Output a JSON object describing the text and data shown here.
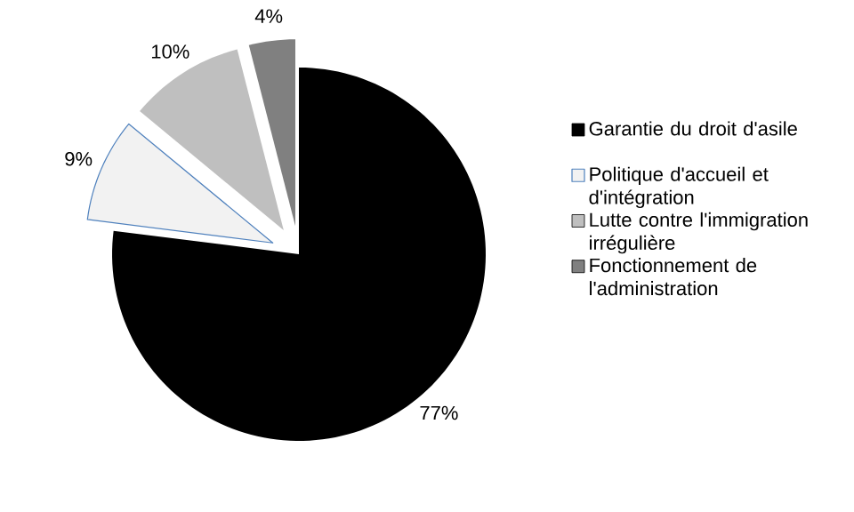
{
  "chart_data": {
    "type": "pie",
    "categories": [
      "Garantie du droit d'asile",
      "Politique d'accueil et d'intégration",
      "Lutte contre l'immigration irrégulière",
      "Fonctionnement de l'administration"
    ],
    "values": [
      77,
      9,
      10,
      4
    ],
    "value_labels": [
      "77%",
      "9%",
      "10%",
      "4%"
    ],
    "colors": [
      "#000000",
      "#f2f2f2",
      "#bfbfbf",
      "#808080"
    ],
    "legend": "right"
  }
}
